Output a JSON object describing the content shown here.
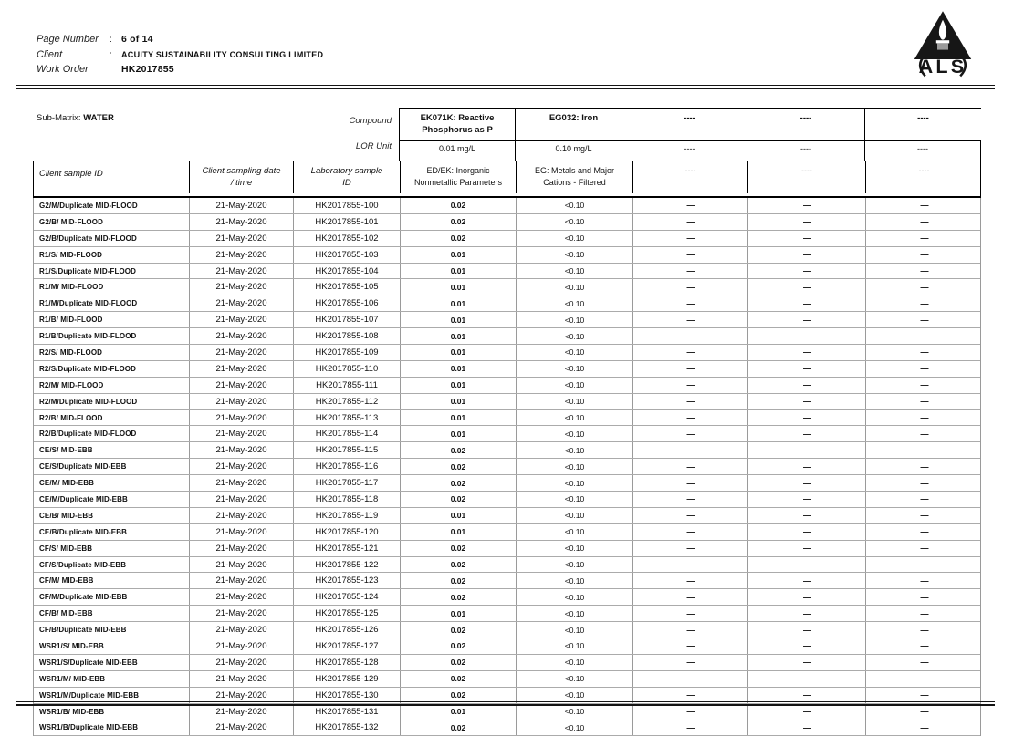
{
  "header": {
    "fields": [
      {
        "label": "Page Number",
        "colon": ":",
        "value": "6 of 14"
      },
      {
        "label": "Client",
        "colon": ":",
        "value": "ACUITY SUSTAINABILITY CONSULTING LIMITED"
      },
      {
        "label": "Work Order",
        "colon": "",
        "value": "HK2017855"
      }
    ],
    "logo_text": "ALS"
  },
  "table": {
    "sub_matrix_label": "Sub-Matrix:",
    "sub_matrix_value": "WATER",
    "compound_label": "Compound",
    "lor_unit_label": "LOR Unit",
    "sample_columns": [
      {
        "header": "Client sample ID"
      },
      {
        "header": "Client sampling date\n/ time"
      },
      {
        "header": "Laboratory sample\nID"
      }
    ],
    "analytes": [
      {
        "compound": "EK071K: Reactive\nPhosphorus as P",
        "lor_unit": "0.01 mg/L",
        "method": "ED/EK: Inorganic\nNonmetallic Parameters"
      },
      {
        "compound": "EG032: Iron",
        "lor_unit": "0.10 mg/L",
        "method": "EG: Metals and Major\nCations - Filtered"
      },
      {
        "compound": "----",
        "lor_unit": "----",
        "method": "----"
      },
      {
        "compound": "----",
        "lor_unit": "----",
        "method": "----"
      },
      {
        "compound": "----",
        "lor_unit": "----",
        "method": "----"
      }
    ],
    "rows": [
      {
        "sample_id": "G2/M/Duplicate MID-FLOOD",
        "date": "21-May-2020",
        "lab_id": "HK2017855-100",
        "values": [
          "0.02",
          "<0.10",
          "—",
          "—",
          "—"
        ]
      },
      {
        "sample_id": "G2/B/ MID-FLOOD",
        "date": "21-May-2020",
        "lab_id": "HK2017855-101",
        "values": [
          "0.02",
          "<0.10",
          "—",
          "—",
          "—"
        ]
      },
      {
        "sample_id": "G2/B/Duplicate MID-FLOOD",
        "date": "21-May-2020",
        "lab_id": "HK2017855-102",
        "values": [
          "0.02",
          "<0.10",
          "—",
          "—",
          "—"
        ]
      },
      {
        "sample_id": "R1/S/ MID-FLOOD",
        "date": "21-May-2020",
        "lab_id": "HK2017855-103",
        "values": [
          "0.01",
          "<0.10",
          "—",
          "—",
          "—"
        ]
      },
      {
        "sample_id": "R1/S/Duplicate MID-FLOOD",
        "date": "21-May-2020",
        "lab_id": "HK2017855-104",
        "values": [
          "0.01",
          "<0.10",
          "—",
          "—",
          "—"
        ]
      },
      {
        "sample_id": "R1/M/ MID-FLOOD",
        "date": "21-May-2020",
        "lab_id": "HK2017855-105",
        "values": [
          "0.01",
          "<0.10",
          "—",
          "—",
          "—"
        ]
      },
      {
        "sample_id": "R1/M/Duplicate MID-FLOOD",
        "date": "21-May-2020",
        "lab_id": "HK2017855-106",
        "values": [
          "0.01",
          "<0.10",
          "—",
          "—",
          "—"
        ]
      },
      {
        "sample_id": "R1/B/ MID-FLOOD",
        "date": "21-May-2020",
        "lab_id": "HK2017855-107",
        "values": [
          "0.01",
          "<0.10",
          "—",
          "—",
          "—"
        ]
      },
      {
        "sample_id": "R1/B/Duplicate MID-FLOOD",
        "date": "21-May-2020",
        "lab_id": "HK2017855-108",
        "values": [
          "0.01",
          "<0.10",
          "—",
          "—",
          "—"
        ]
      },
      {
        "sample_id": "R2/S/ MID-FLOOD",
        "date": "21-May-2020",
        "lab_id": "HK2017855-109",
        "values": [
          "0.01",
          "<0.10",
          "—",
          "—",
          "—"
        ]
      },
      {
        "sample_id": "R2/S/Duplicate MID-FLOOD",
        "date": "21-May-2020",
        "lab_id": "HK2017855-110",
        "values": [
          "0.01",
          "<0.10",
          "—",
          "—",
          "—"
        ]
      },
      {
        "sample_id": "R2/M/ MID-FLOOD",
        "date": "21-May-2020",
        "lab_id": "HK2017855-111",
        "values": [
          "0.01",
          "<0.10",
          "—",
          "—",
          "—"
        ]
      },
      {
        "sample_id": "R2/M/Duplicate MID-FLOOD",
        "date": "21-May-2020",
        "lab_id": "HK2017855-112",
        "values": [
          "0.01",
          "<0.10",
          "—",
          "—",
          "—"
        ]
      },
      {
        "sample_id": "R2/B/ MID-FLOOD",
        "date": "21-May-2020",
        "lab_id": "HK2017855-113",
        "values": [
          "0.01",
          "<0.10",
          "—",
          "—",
          "—"
        ]
      },
      {
        "sample_id": "R2/B/Duplicate MID-FLOOD",
        "date": "21-May-2020",
        "lab_id": "HK2017855-114",
        "values": [
          "0.01",
          "<0.10",
          "—",
          "—",
          "—"
        ]
      },
      {
        "sample_id": "CE/S/ MID-EBB",
        "date": "21-May-2020",
        "lab_id": "HK2017855-115",
        "values": [
          "0.02",
          "<0.10",
          "—",
          "—",
          "—"
        ]
      },
      {
        "sample_id": "CE/S/Duplicate MID-EBB",
        "date": "21-May-2020",
        "lab_id": "HK2017855-116",
        "values": [
          "0.02",
          "<0.10",
          "—",
          "—",
          "—"
        ]
      },
      {
        "sample_id": "CE/M/ MID-EBB",
        "date": "21-May-2020",
        "lab_id": "HK2017855-117",
        "values": [
          "0.02",
          "<0.10",
          "—",
          "—",
          "—"
        ]
      },
      {
        "sample_id": "CE/M/Duplicate MID-EBB",
        "date": "21-May-2020",
        "lab_id": "HK2017855-118",
        "values": [
          "0.02",
          "<0.10",
          "—",
          "—",
          "—"
        ]
      },
      {
        "sample_id": "CE/B/ MID-EBB",
        "date": "21-May-2020",
        "lab_id": "HK2017855-119",
        "values": [
          "0.01",
          "<0.10",
          "—",
          "—",
          "—"
        ]
      },
      {
        "sample_id": "CE/B/Duplicate MID-EBB",
        "date": "21-May-2020",
        "lab_id": "HK2017855-120",
        "values": [
          "0.01",
          "<0.10",
          "—",
          "—",
          "—"
        ]
      },
      {
        "sample_id": "CF/S/ MID-EBB",
        "date": "21-May-2020",
        "lab_id": "HK2017855-121",
        "values": [
          "0.02",
          "<0.10",
          "—",
          "—",
          "—"
        ]
      },
      {
        "sample_id": "CF/S/Duplicate MID-EBB",
        "date": "21-May-2020",
        "lab_id": "HK2017855-122",
        "values": [
          "0.02",
          "<0.10",
          "—",
          "—",
          "—"
        ]
      },
      {
        "sample_id": "CF/M/ MID-EBB",
        "date": "21-May-2020",
        "lab_id": "HK2017855-123",
        "values": [
          "0.02",
          "<0.10",
          "—",
          "—",
          "—"
        ]
      },
      {
        "sample_id": "CF/M/Duplicate MID-EBB",
        "date": "21-May-2020",
        "lab_id": "HK2017855-124",
        "values": [
          "0.02",
          "<0.10",
          "—",
          "—",
          "—"
        ]
      },
      {
        "sample_id": "CF/B/ MID-EBB",
        "date": "21-May-2020",
        "lab_id": "HK2017855-125",
        "values": [
          "0.01",
          "<0.10",
          "—",
          "—",
          "—"
        ]
      },
      {
        "sample_id": "CF/B/Duplicate MID-EBB",
        "date": "21-May-2020",
        "lab_id": "HK2017855-126",
        "values": [
          "0.02",
          "<0.10",
          "—",
          "—",
          "—"
        ]
      },
      {
        "sample_id": "WSR1/S/ MID-EBB",
        "date": "21-May-2020",
        "lab_id": "HK2017855-127",
        "values": [
          "0.02",
          "<0.10",
          "—",
          "—",
          "—"
        ]
      },
      {
        "sample_id": "WSR1/S/Duplicate MID-EBB",
        "date": "21-May-2020",
        "lab_id": "HK2017855-128",
        "values": [
          "0.02",
          "<0.10",
          "—",
          "—",
          "—"
        ]
      },
      {
        "sample_id": "WSR1/M/ MID-EBB",
        "date": "21-May-2020",
        "lab_id": "HK2017855-129",
        "values": [
          "0.02",
          "<0.10",
          "—",
          "—",
          "—"
        ]
      },
      {
        "sample_id": "WSR1/M/Duplicate MID-EBB",
        "date": "21-May-2020",
        "lab_id": "HK2017855-130",
        "values": [
          "0.02",
          "<0.10",
          "—",
          "—",
          "—"
        ]
      },
      {
        "sample_id": "WSR1/B/ MID-EBB",
        "date": "21-May-2020",
        "lab_id": "HK2017855-131",
        "values": [
          "0.01",
          "<0.10",
          "—",
          "—",
          "—"
        ]
      },
      {
        "sample_id": "WSR1/B/Duplicate MID-EBB",
        "date": "21-May-2020",
        "lab_id": "HK2017855-132",
        "values": [
          "0.02",
          "<0.10",
          "—",
          "—",
          "—"
        ]
      }
    ]
  }
}
